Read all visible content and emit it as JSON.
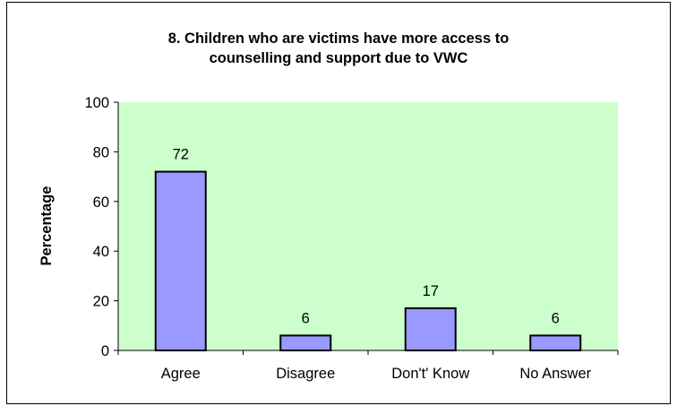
{
  "chart_data": {
    "type": "bar",
    "title_lines": [
      "8. Children who are victims have more access to",
      "counselling and support due to VWC"
    ],
    "xlabel": "",
    "ylabel": "Percentage",
    "categories": [
      "Agree",
      "Disagree",
      "Don't' Know",
      "No Answer"
    ],
    "values": [
      72,
      6,
      17,
      6
    ],
    "data_labels": [
      "72",
      "6",
      "17",
      "6"
    ],
    "ylim": [
      0,
      100
    ],
    "yticks": [
      0,
      20,
      40,
      60,
      80,
      100
    ],
    "grid": false,
    "legend": "none",
    "colors": {
      "plot_bg": "#ccffcc",
      "bar_fill": "#9999ff",
      "bar_stroke": "#000000"
    }
  }
}
